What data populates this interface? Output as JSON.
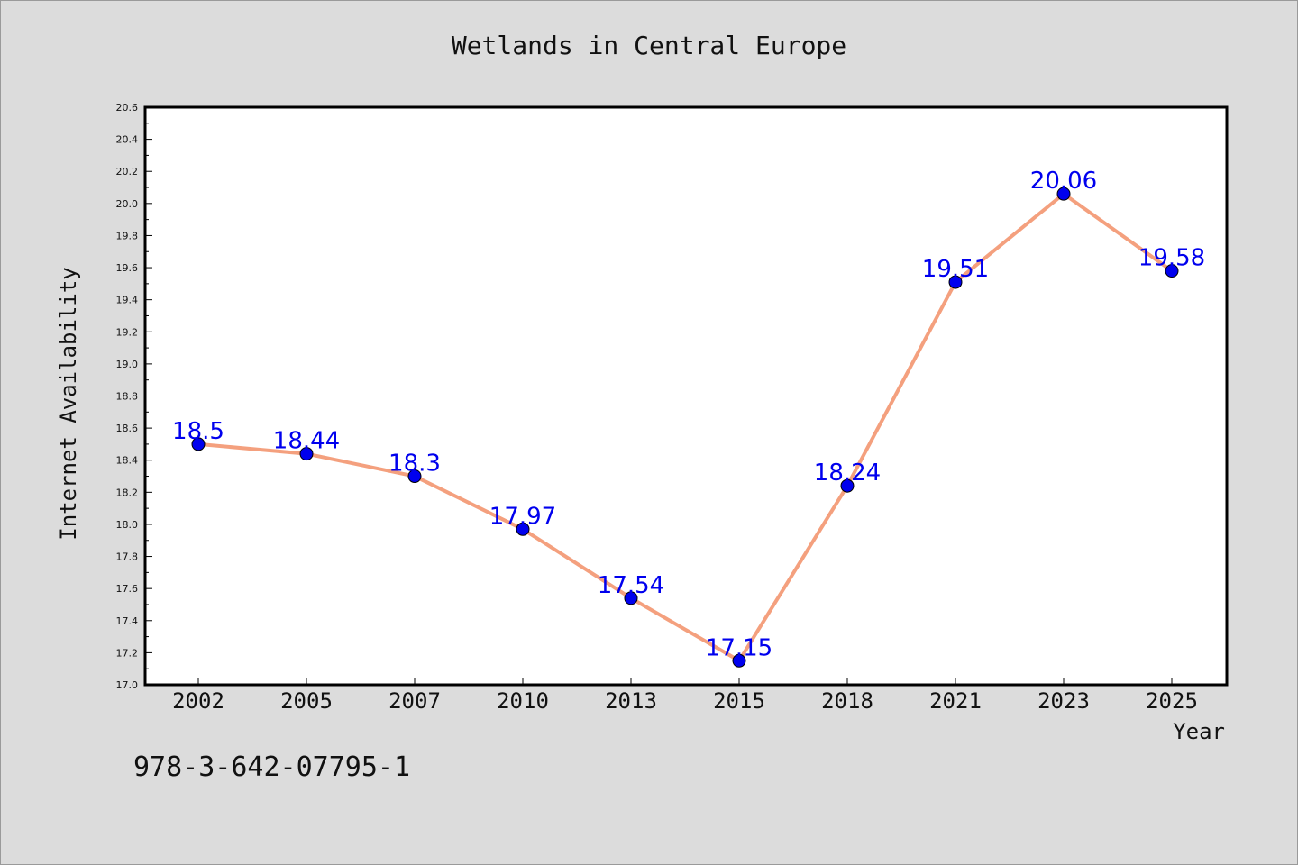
{
  "chart_data": {
    "type": "line",
    "title": "Wetlands in Central Europe",
    "xlabel": "Year",
    "ylabel": "Internet Availability",
    "categories": [
      "2002",
      "2005",
      "2007",
      "2010",
      "2013",
      "2015",
      "2018",
      "2021",
      "2023",
      "2025"
    ],
    "series": [
      {
        "values": [
          18.5,
          18.44,
          18.3,
          17.97,
          17.54,
          17.15,
          18.24,
          19.51,
          20.06,
          19.58
        ],
        "labels": [
          "18.5",
          "18.44",
          "18.3",
          "17.97",
          "17.54",
          "17.15",
          "18.24",
          "19.51",
          "20.06",
          "19.58"
        ]
      }
    ],
    "ylim": [
      17.0,
      20.6
    ],
    "yticks": [
      "17.0",
      "17.2",
      "17.4",
      "17.6",
      "17.8",
      "18.0",
      "18.2",
      "18.4",
      "18.6",
      "18.8",
      "19.0",
      "19.2",
      "19.4",
      "19.6",
      "19.8",
      "20.0",
      "20.2",
      "20.4",
      "20.6"
    ],
    "grid": false,
    "legend": "none",
    "colors": {
      "line": "#f4a07e",
      "marker": "#0000ee",
      "data_label": "#0000ee",
      "plot_background": "#ffffff",
      "page_background": "#dcdcdc"
    }
  },
  "footer": {
    "code": "978-3-642-07795-1"
  }
}
